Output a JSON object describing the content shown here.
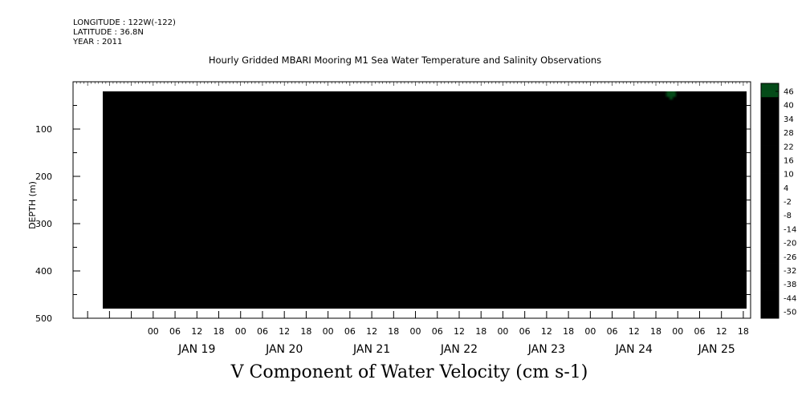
{
  "header": {
    "longitude": "LONGITUDE : 122W(-122)",
    "latitude": "LATITUDE : 36.8N",
    "year": "YEAR : 2011"
  },
  "chart_data": {
    "type": "heatmap",
    "title": "Hourly Gridded MBARI Mooring M1 Sea Water Temperature and Salinity Observations",
    "xlabel": "V Component of Water Velocity (cm s-1)",
    "ylabel": "DEPTH (m)",
    "y_ticks": [
      100,
      200,
      300,
      400,
      500
    ],
    "ylim": [
      500,
      0
    ],
    "x_hour_ticks": [
      "00",
      "06",
      "12",
      "18",
      "00",
      "06",
      "12",
      "18",
      "00",
      "06",
      "12",
      "18",
      "00",
      "06",
      "12",
      "18",
      "00",
      "06",
      "12",
      "18",
      "00",
      "06",
      "12",
      "18",
      "00",
      "06",
      "12",
      "18"
    ],
    "x_day_labels": [
      "JAN 19",
      "JAN 20",
      "JAN 21",
      "JAN 22",
      "JAN 23",
      "JAN 24",
      "JAN 25"
    ],
    "colorbar_labels": [
      "46",
      "40",
      "34",
      "28",
      "22",
      "16",
      "10",
      "4",
      "-2",
      "-8",
      "-14",
      "-20",
      "-26",
      "-32",
      "-38",
      "-44",
      "-50"
    ],
    "colorbar_range": [
      -50,
      52
    ],
    "colors": {
      "strong_positive": "#0a5a1e",
      "positive": "#3cd23c",
      "weak_positive": "#a8eaa8",
      "weak_negative": "#b4b4ec",
      "negative": "#5a70e0",
      "strong_negative": "#000a6e"
    }
  }
}
